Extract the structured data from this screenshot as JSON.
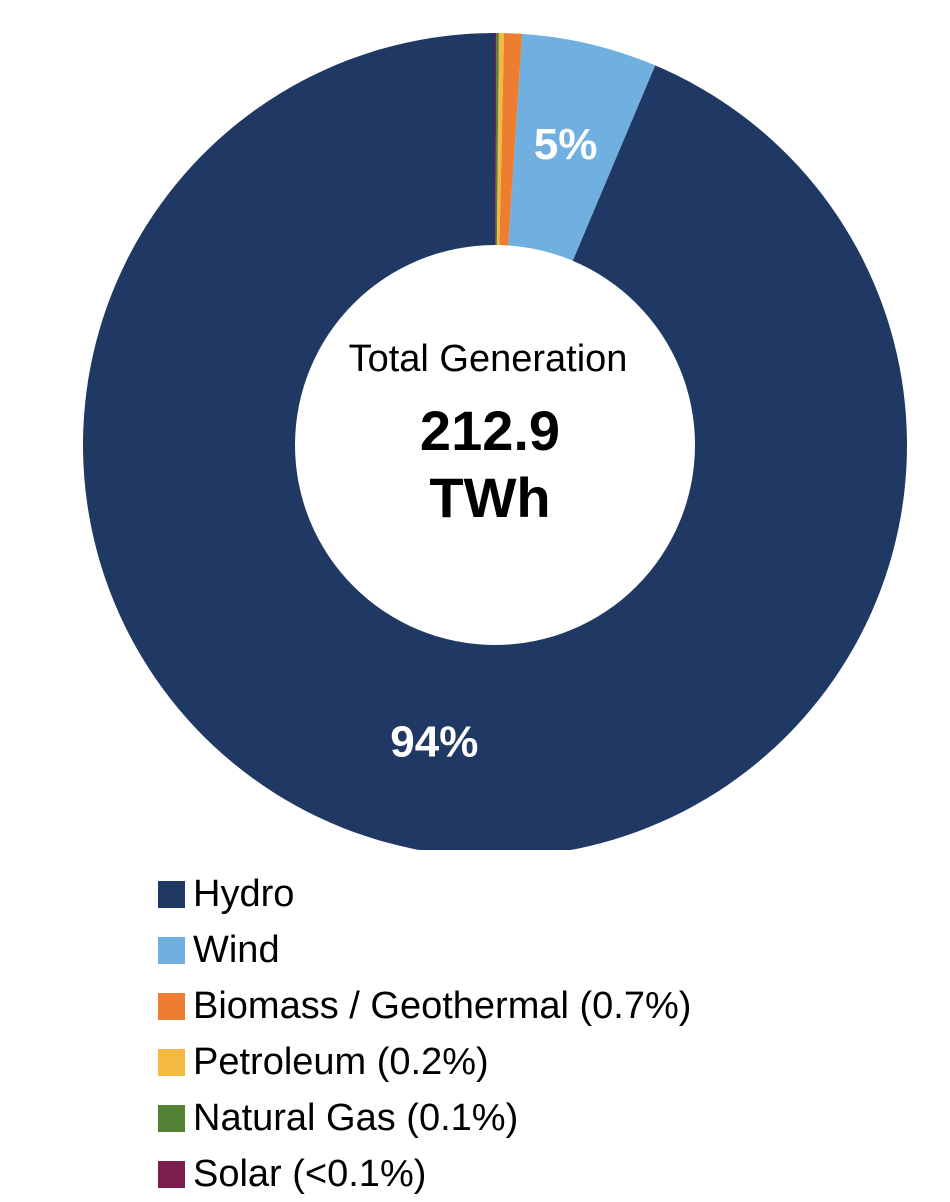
{
  "chart_data": {
    "type": "pie",
    "donut": true,
    "center": {
      "title": "Total Generation",
      "value": "212.9",
      "unit": "TWh"
    },
    "slices": [
      {
        "name": "Hydro",
        "legend_label": "Hydro",
        "percent": 93.6,
        "color": "#1f3864",
        "data_label": "94%"
      },
      {
        "name": "Wind",
        "legend_label": "Wind",
        "percent": 5.3,
        "color": "#70b0e0",
        "data_label": "5%"
      },
      {
        "name": "Biomass / Geothermal",
        "legend_label": "Biomass / Geothermal (0.7%)",
        "percent": 0.7,
        "color": "#ed7d31",
        "data_label": ""
      },
      {
        "name": "Petroleum",
        "legend_label": "Petroleum (0.2%)",
        "percent": 0.2,
        "color": "#f4b942",
        "data_label": ""
      },
      {
        "name": "Natural Gas",
        "legend_label": "Natural Gas (0.1%)",
        "percent": 0.1,
        "color": "#548235",
        "data_label": ""
      },
      {
        "name": "Solar",
        "legend_label": "Solar (<0.1%)",
        "percent": 0.05,
        "color": "#7b1e4e",
        "data_label": ""
      }
    ],
    "legend_position": "bottom-left"
  }
}
